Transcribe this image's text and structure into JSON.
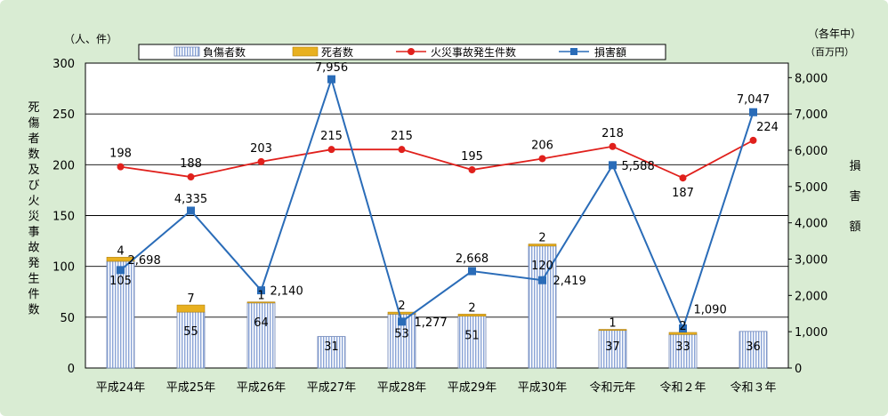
{
  "chart_data": {
    "type": "bar+line",
    "categories": [
      "平成24年",
      "平成25年",
      "平成26年",
      "平成27年",
      "平成28年",
      "平成29年",
      "平成30年",
      "令和元年",
      "令和２年",
      "令和３年"
    ],
    "left_axis": {
      "unit": "（人、件）",
      "label": "死傷者数及び火災事故発生件数",
      "ticks": [
        "0",
        "50",
        "100",
        "150",
        "200",
        "250",
        "300"
      ],
      "range": [
        0,
        300
      ]
    },
    "right_axis": {
      "note": "（各年中）",
      "unit": "（百万円）",
      "label": "損害額",
      "ticks": [
        "0",
        "1,000",
        "2,000",
        "3,000",
        "4,000",
        "5,000",
        "6,000",
        "7,000",
        "8,000"
      ],
      "range": [
        0,
        8400
      ]
    },
    "grid": true,
    "legend_position": "top",
    "series": [
      {
        "name": "負傷者数",
        "type": "bar",
        "axis": "left",
        "color": "#b8c8e6",
        "values": [
          105,
          55,
          64,
          31,
          53,
          51,
          120,
          37,
          33,
          36
        ],
        "labels": [
          "105",
          "55",
          "64",
          "31",
          "53",
          "51",
          "120",
          "37",
          "33",
          "36"
        ]
      },
      {
        "name": "死者数",
        "type": "bar",
        "axis": "left",
        "stacked": true,
        "color": "#e8b020",
        "values": [
          4,
          7,
          1,
          0,
          2,
          2,
          2,
          1,
          2,
          0
        ],
        "labels": [
          "4",
          "7",
          "1",
          "",
          "2",
          "2",
          "2",
          "1",
          "2",
          ""
        ]
      },
      {
        "name": "火災事故発生件数",
        "type": "line",
        "axis": "left",
        "color": "#e0201c",
        "values": [
          198,
          188,
          203,
          215,
          215,
          195,
          206,
          218,
          187,
          224
        ],
        "labels": [
          "198",
          "188",
          "203",
          "215",
          "215",
          "195",
          "206",
          "218",
          "187",
          "224"
        ]
      },
      {
        "name": "損害額",
        "type": "line",
        "axis": "right",
        "color": "#2a6cb8",
        "values": [
          2698,
          4335,
          2140,
          7956,
          1277,
          2668,
          2419,
          5588,
          1090,
          7047
        ],
        "labels": [
          "2,698",
          "4,335",
          "2,140",
          "7,956",
          "1,277",
          "2,668",
          "2,419",
          "5,588",
          "1,090",
          "7,047"
        ]
      }
    ]
  }
}
